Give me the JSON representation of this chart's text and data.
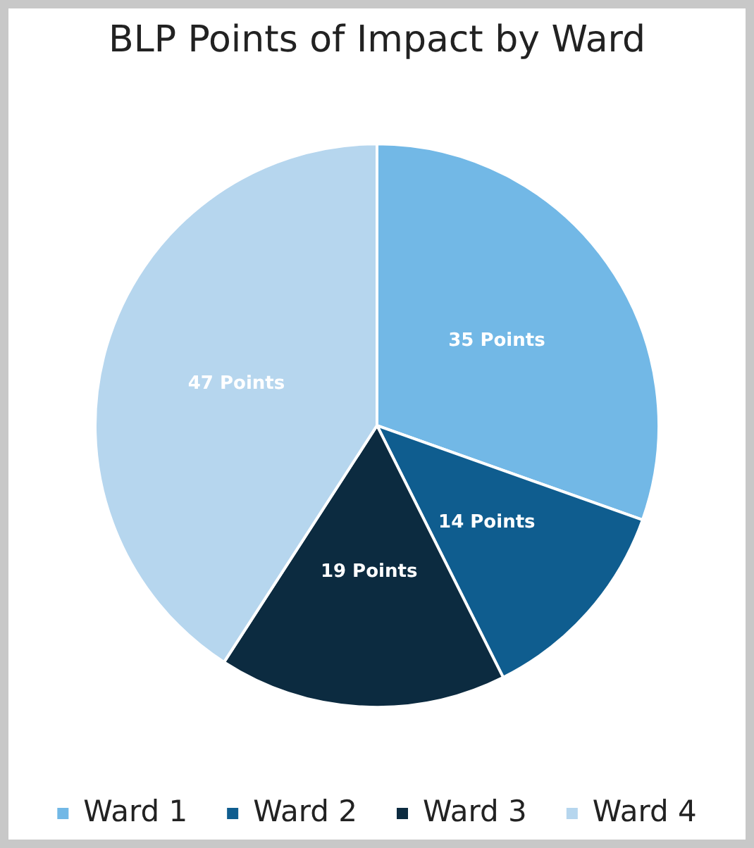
{
  "chart_data": {
    "type": "pie",
    "title": "BLP Points of Impact by Ward",
    "categories": [
      "Ward 1",
      "Ward 2",
      "Ward 3",
      "Ward 4"
    ],
    "values": [
      35,
      14,
      19,
      47
    ],
    "colors": [
      "#72b8e6",
      "#0f5d8f",
      "#0c2b40",
      "#b6d6ee"
    ],
    "value_labels": [
      "35 Points",
      "14 Points",
      "19 Points",
      "47 Points"
    ],
    "legend": "bottom"
  }
}
